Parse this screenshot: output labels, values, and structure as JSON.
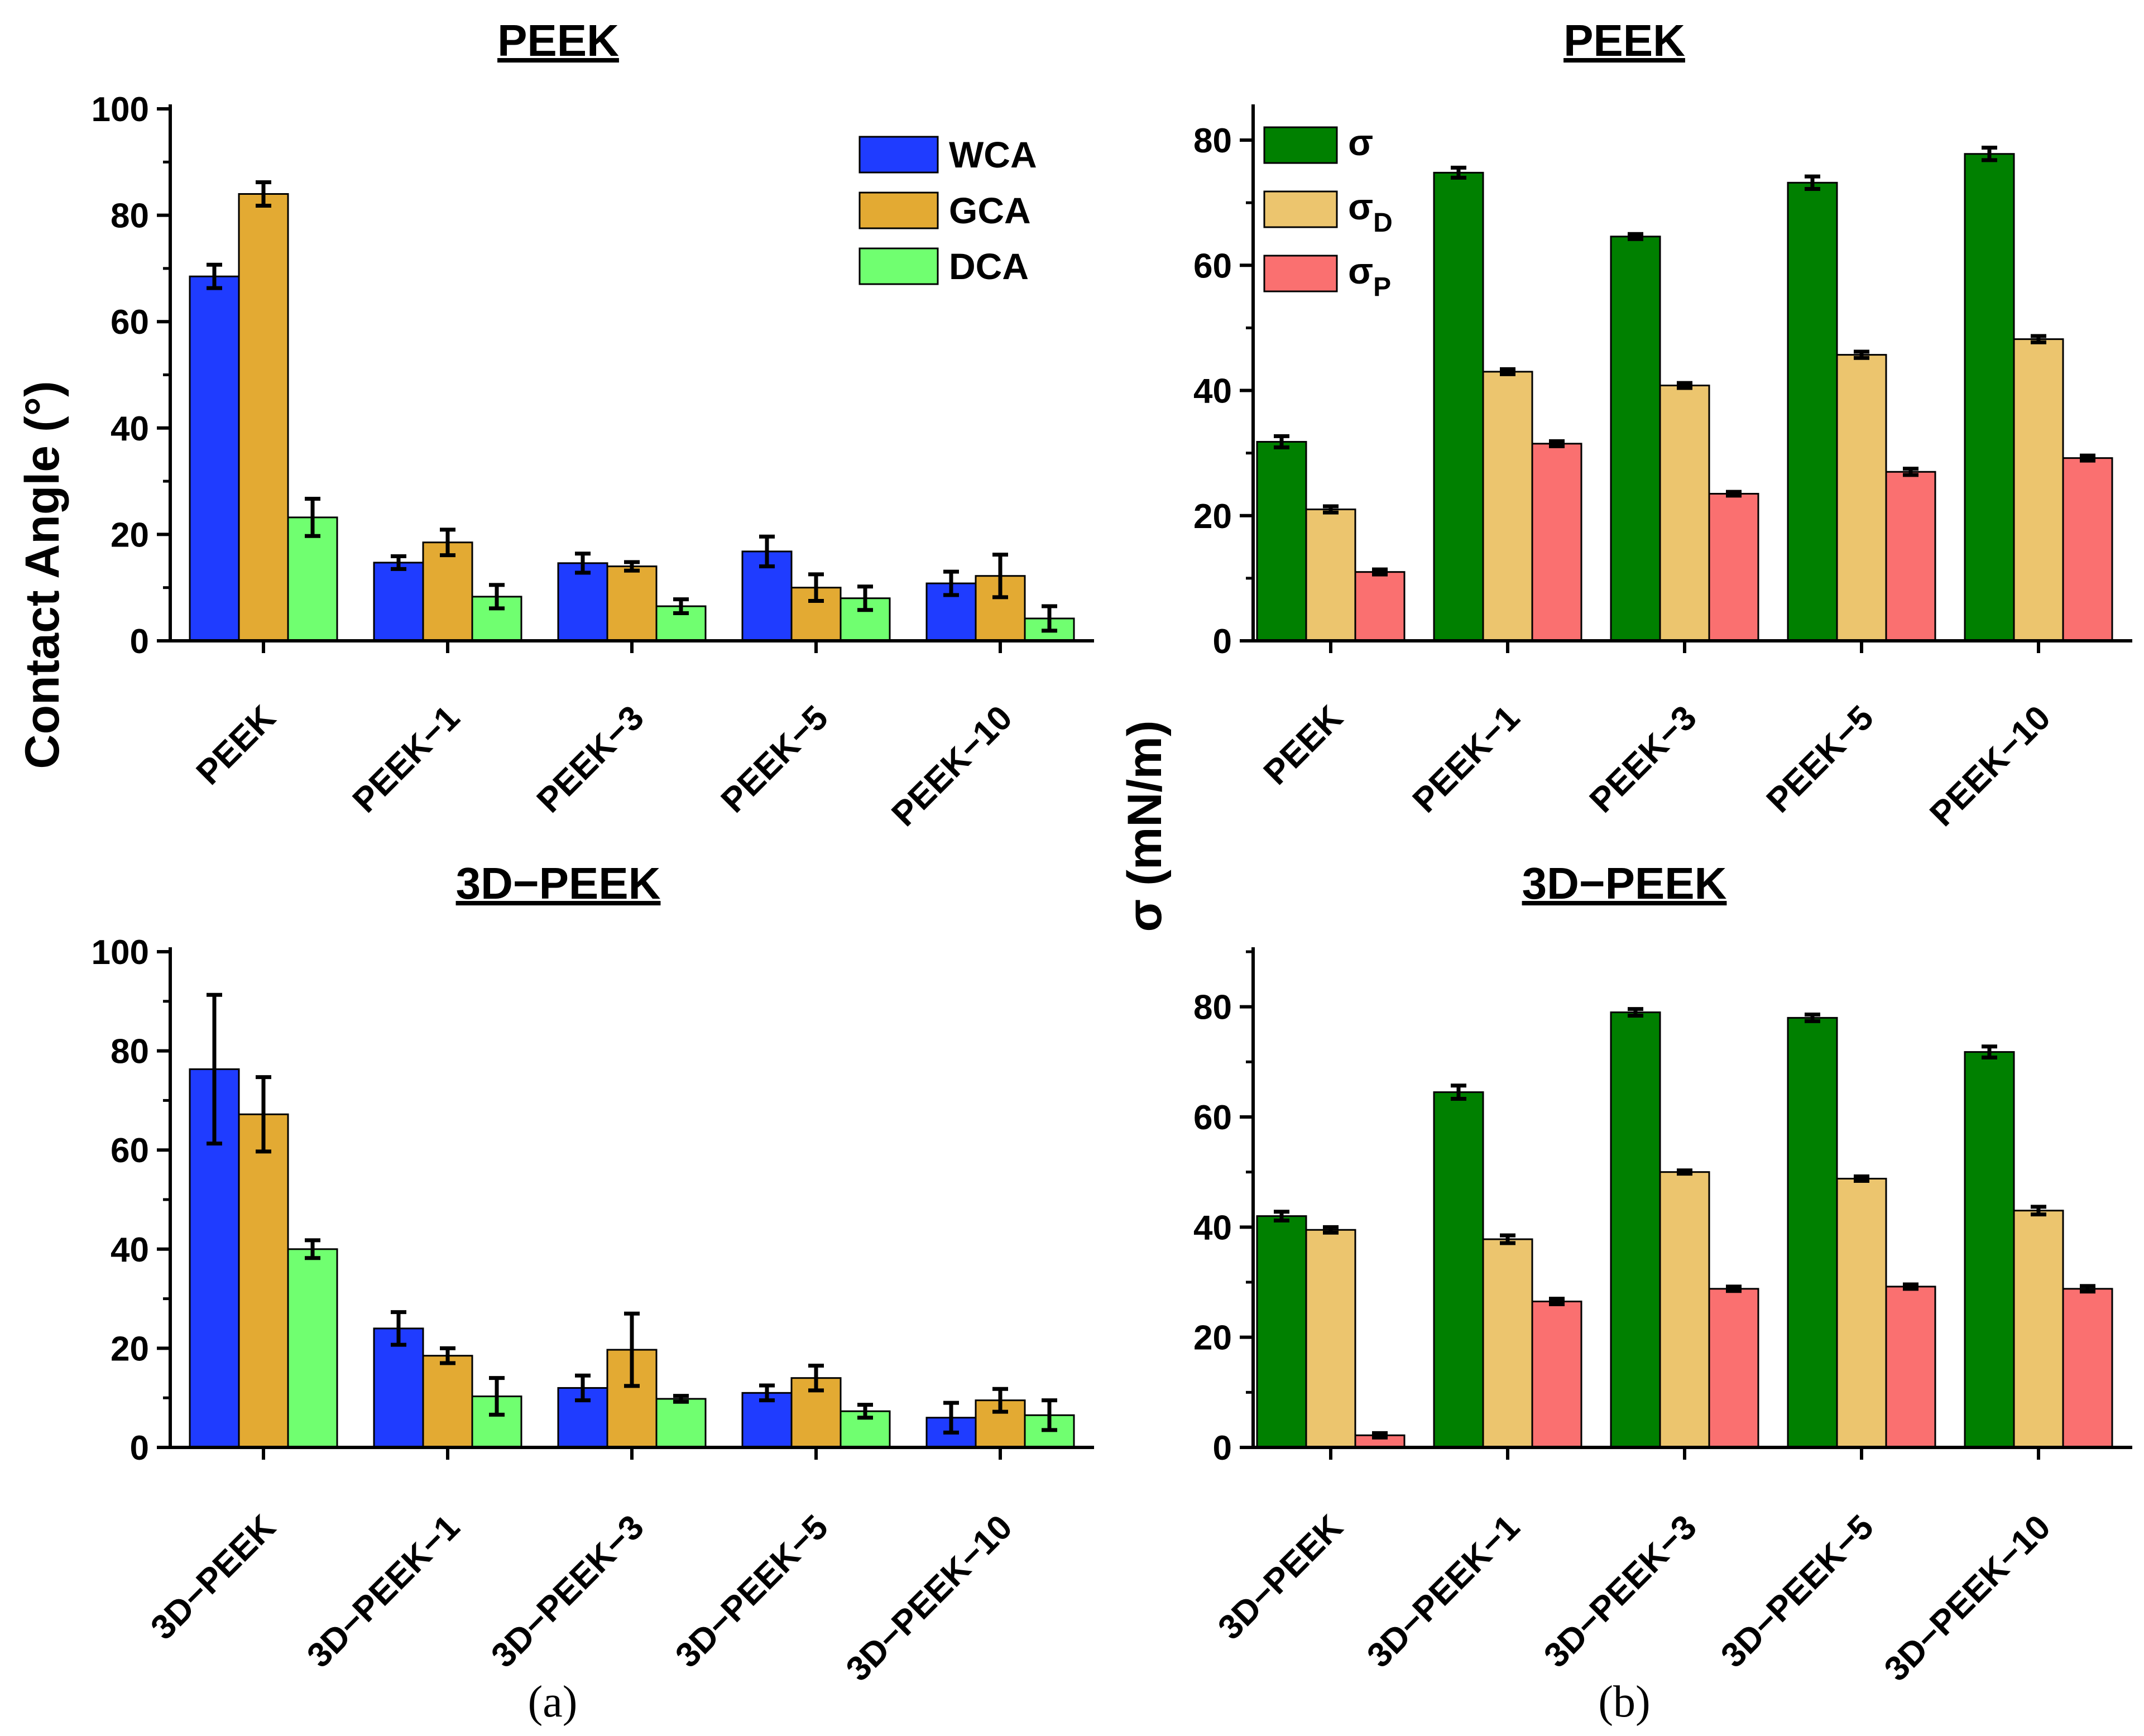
{
  "chart_data": [
    {
      "id": "a-top",
      "type": "bar",
      "title": "PEEK",
      "ylabel": "Contact Angle (°)",
      "ylim": [
        0,
        100
      ],
      "yticks": [
        0,
        20,
        40,
        60,
        80,
        100
      ],
      "categories": [
        "PEEK",
        "PEEK−1",
        "PEEK−3",
        "PEEK−5",
        "PEEK−10"
      ],
      "legend": "top-right",
      "series": [
        {
          "name": "WCA",
          "color": "#1f3cff",
          "values": [
            68.5,
            14.7,
            14.6,
            16.8,
            10.8
          ],
          "errors": [
            2.2,
            1.2,
            1.8,
            2.8,
            2.2
          ]
        },
        {
          "name": "GCA",
          "color": "#e3aa33",
          "values": [
            84.0,
            18.5,
            14.0,
            10.0,
            12.2
          ],
          "errors": [
            2.2,
            2.4,
            0.8,
            2.5,
            4.0
          ]
        },
        {
          "name": "DCA",
          "color": "#70ff70",
          "values": [
            23.2,
            8.3,
            6.5,
            8.0,
            4.2
          ],
          "errors": [
            3.5,
            2.2,
            1.3,
            2.2,
            2.3
          ]
        }
      ]
    },
    {
      "id": "a-bottom",
      "type": "bar",
      "title": "3D−PEEK",
      "ylim": [
        0,
        100
      ],
      "yticks": [
        0,
        20,
        40,
        60,
        80,
        100
      ],
      "categories": [
        "3D−PEEK",
        "3D−PEEK−1",
        "3D−PEEK−3",
        "3D−PEEK−5",
        "3D−PEEK−10"
      ],
      "series": [
        {
          "name": "WCA",
          "color": "#1f3cff",
          "values": [
            76.3,
            24.0,
            12.0,
            11.0,
            6.0
          ],
          "errors": [
            15.0,
            3.3,
            2.5,
            1.5,
            3.0
          ]
        },
        {
          "name": "GCA",
          "color": "#e3aa33",
          "values": [
            67.2,
            18.5,
            19.7,
            14.0,
            9.5
          ],
          "errors": [
            7.5,
            1.5,
            7.3,
            2.5,
            2.3
          ]
        },
        {
          "name": "DCA",
          "color": "#70ff70",
          "values": [
            40.0,
            10.3,
            9.8,
            7.3,
            6.5
          ],
          "errors": [
            1.8,
            3.7,
            0.6,
            1.3,
            3.0
          ]
        }
      ]
    },
    {
      "id": "b-top",
      "type": "bar",
      "title": "PEEK",
      "ylabel": "σ (mN/m)",
      "ylim": [
        0,
        85
      ],
      "yticks": [
        0,
        20,
        40,
        60,
        80
      ],
      "categories": [
        "PEEK",
        "PEEK−1",
        "PEEK−3",
        "PEEK−5",
        "PEEK−10"
      ],
      "legend": "top-left",
      "series": [
        {
          "name": "σ",
          "color": "#008000",
          "values": [
            31.8,
            74.8,
            64.6,
            73.2,
            77.8
          ],
          "errors": [
            0.9,
            0.8,
            0.4,
            1.0,
            1.0
          ]
        },
        {
          "name": "σD",
          "color": "#ecc56e",
          "values": [
            21.0,
            43.0,
            40.8,
            45.7,
            48.2
          ],
          "errors": [
            0.5,
            0.4,
            0.4,
            0.5,
            0.5
          ]
        },
        {
          "name": "σP",
          "color": "#fa7070",
          "values": [
            11.0,
            31.5,
            23.5,
            27.0,
            29.2
          ],
          "errors": [
            0.4,
            0.4,
            0.3,
            0.5,
            0.4
          ]
        }
      ]
    },
    {
      "id": "b-bottom",
      "type": "bar",
      "title": "3D−PEEK",
      "ylim": [
        0,
        90
      ],
      "yticks": [
        0,
        20,
        40,
        60,
        80
      ],
      "categories": [
        "3D−PEEK",
        "3D−PEEK−1",
        "3D−PEEK−3",
        "3D−PEEK−5",
        "3D−PEEK−10"
      ],
      "series": [
        {
          "name": "σ",
          "color": "#008000",
          "values": [
            42.0,
            64.5,
            79.0,
            78.0,
            71.8
          ],
          "errors": [
            0.8,
            1.2,
            0.6,
            0.6,
            1.0
          ]
        },
        {
          "name": "σD",
          "color": "#ecc56e",
          "values": [
            39.5,
            37.8,
            50.0,
            48.8,
            43.0
          ],
          "errors": [
            0.5,
            0.7,
            0.3,
            0.4,
            0.7
          ]
        },
        {
          "name": "σP",
          "color": "#fa7070",
          "values": [
            2.2,
            26.5,
            28.8,
            29.2,
            28.8
          ],
          "errors": [
            0.4,
            0.5,
            0.4,
            0.4,
            0.5
          ]
        }
      ]
    }
  ],
  "legend": {
    "b": [
      {
        "symbol": "σ",
        "sub": ""
      },
      {
        "symbol": "σ",
        "sub": "D"
      },
      {
        "symbol": "σ",
        "sub": "P"
      }
    ]
  },
  "captions": {
    "a": "(a)",
    "b": "(b)"
  }
}
